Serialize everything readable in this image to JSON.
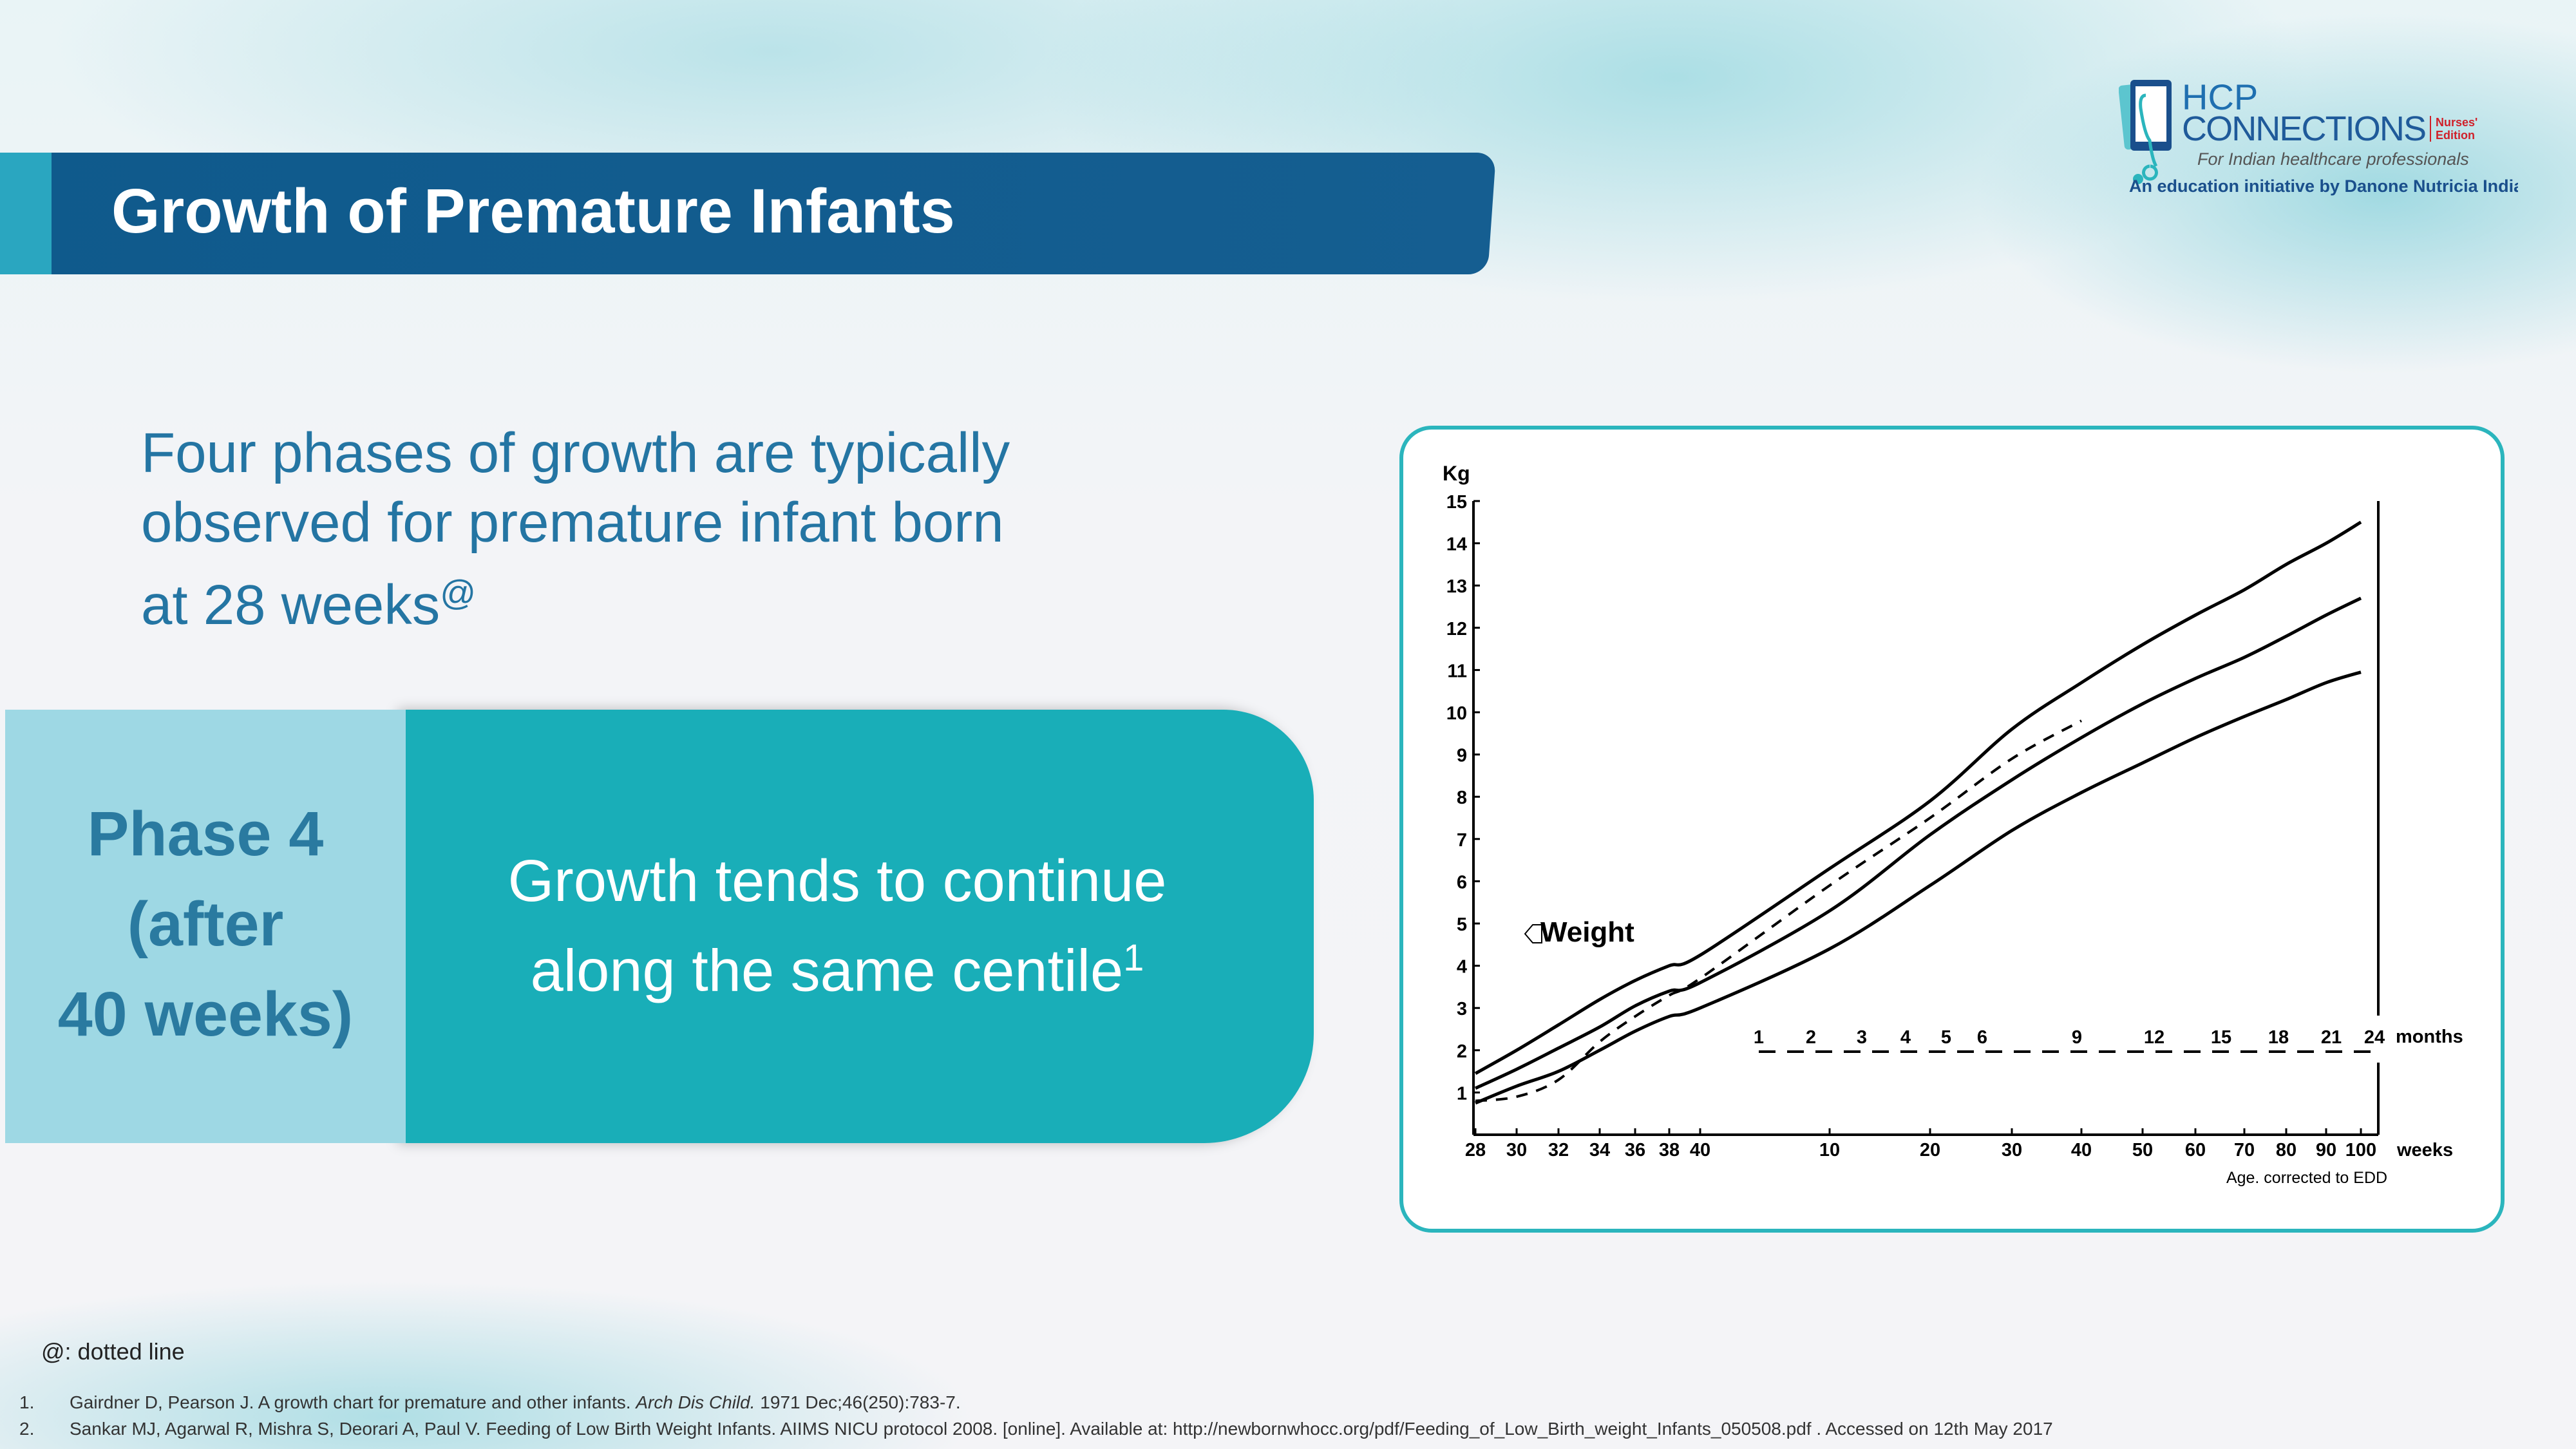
{
  "header": {
    "title": "Growth of Premature Infants"
  },
  "logo": {
    "line1": "HCP",
    "line2": "CONNECTIONS",
    "edition_1": "Nurses'",
    "edition_2": "Edition",
    "tagline": "For Indian healthcare professionals",
    "initiative": "An education initiative by Danone Nutricia India"
  },
  "intro": {
    "line1": "Four phases of growth are typically",
    "line2": "observed for premature infant born",
    "line3": "at 28 weeks",
    "sup": "@"
  },
  "phase": {
    "line1": "Phase 4",
    "line2": "(after",
    "line3": "40 weeks)",
    "desc1": "Growth tends to continue",
    "desc2": "along the same centile",
    "desc_sup": "1"
  },
  "colors": {
    "brand_dark": "#155e91",
    "teal": "#19aeb8",
    "light_teal": "#9ed8e4",
    "accent_red": "#d0202a"
  },
  "chart_data": {
    "type": "line",
    "ylabel": "Kg",
    "ylim": [
      0,
      15
    ],
    "yticks": [
      1,
      2,
      3,
      4,
      5,
      6,
      7,
      8,
      9,
      10,
      11,
      12,
      13,
      14,
      15
    ],
    "x_ticks": [
      "28",
      "30",
      "32",
      "34",
      "36",
      "38",
      "40",
      "10",
      "20",
      "30",
      "40",
      "50",
      "60",
      "70",
      "80",
      "90",
      "100"
    ],
    "x_unit_label": "weeks",
    "xlabel": "Age. corrected to EDD",
    "months_ticks": [
      "1",
      "2",
      "3",
      "4",
      "5",
      "6",
      "9",
      "12",
      "15",
      "18",
      "21",
      "24"
    ],
    "months_label": "months",
    "annotation": "Weight",
    "series": [
      {
        "style": "solid",
        "values": [
          1.45,
          2.0,
          2.6,
          3.2,
          3.65,
          4.0,
          4.25,
          6.3,
          7.9,
          9.6,
          10.7,
          11.6,
          12.3,
          12.9,
          13.5,
          14.0,
          14.5
        ]
      },
      {
        "style": "solid",
        "values": [
          1.1,
          1.55,
          2.05,
          2.55,
          3.05,
          3.4,
          3.6,
          5.3,
          7.1,
          8.4,
          9.4,
          10.2,
          10.8,
          11.3,
          11.8,
          12.3,
          12.7
        ]
      },
      {
        "style": "solid",
        "values": [
          0.75,
          1.15,
          1.5,
          2.0,
          2.45,
          2.8,
          3.0,
          4.4,
          5.9,
          7.2,
          8.1,
          8.8,
          9.4,
          9.9,
          10.3,
          10.7,
          10.95
        ]
      },
      {
        "style": "dotted",
        "values": [
          0.8,
          0.9,
          1.3,
          2.2,
          2.8,
          3.3,
          3.7,
          5.9,
          7.5,
          8.9,
          9.8
        ]
      }
    ]
  },
  "footnote": "@: dotted line",
  "references": [
    {
      "num": "1.",
      "text": "Gairdner D, Pearson J. A growth chart for premature and other infants. ",
      "journal": "Arch Dis Child.",
      "rest": " 1971 Dec;46(250):783-7."
    },
    {
      "num": "2.",
      "text": "Sankar MJ, Agarwal R, Mishra S, Deorari A, Paul V. Feeding of Low Birth Weight Infants. AIIMS NICU protocol 2008. [online]. Available at:   http://newbornwhocc.org/pdf/Feeding_of_Low_Birth_weight_Infants_050508.pdf . Accessed on 12th May 2017"
    }
  ]
}
